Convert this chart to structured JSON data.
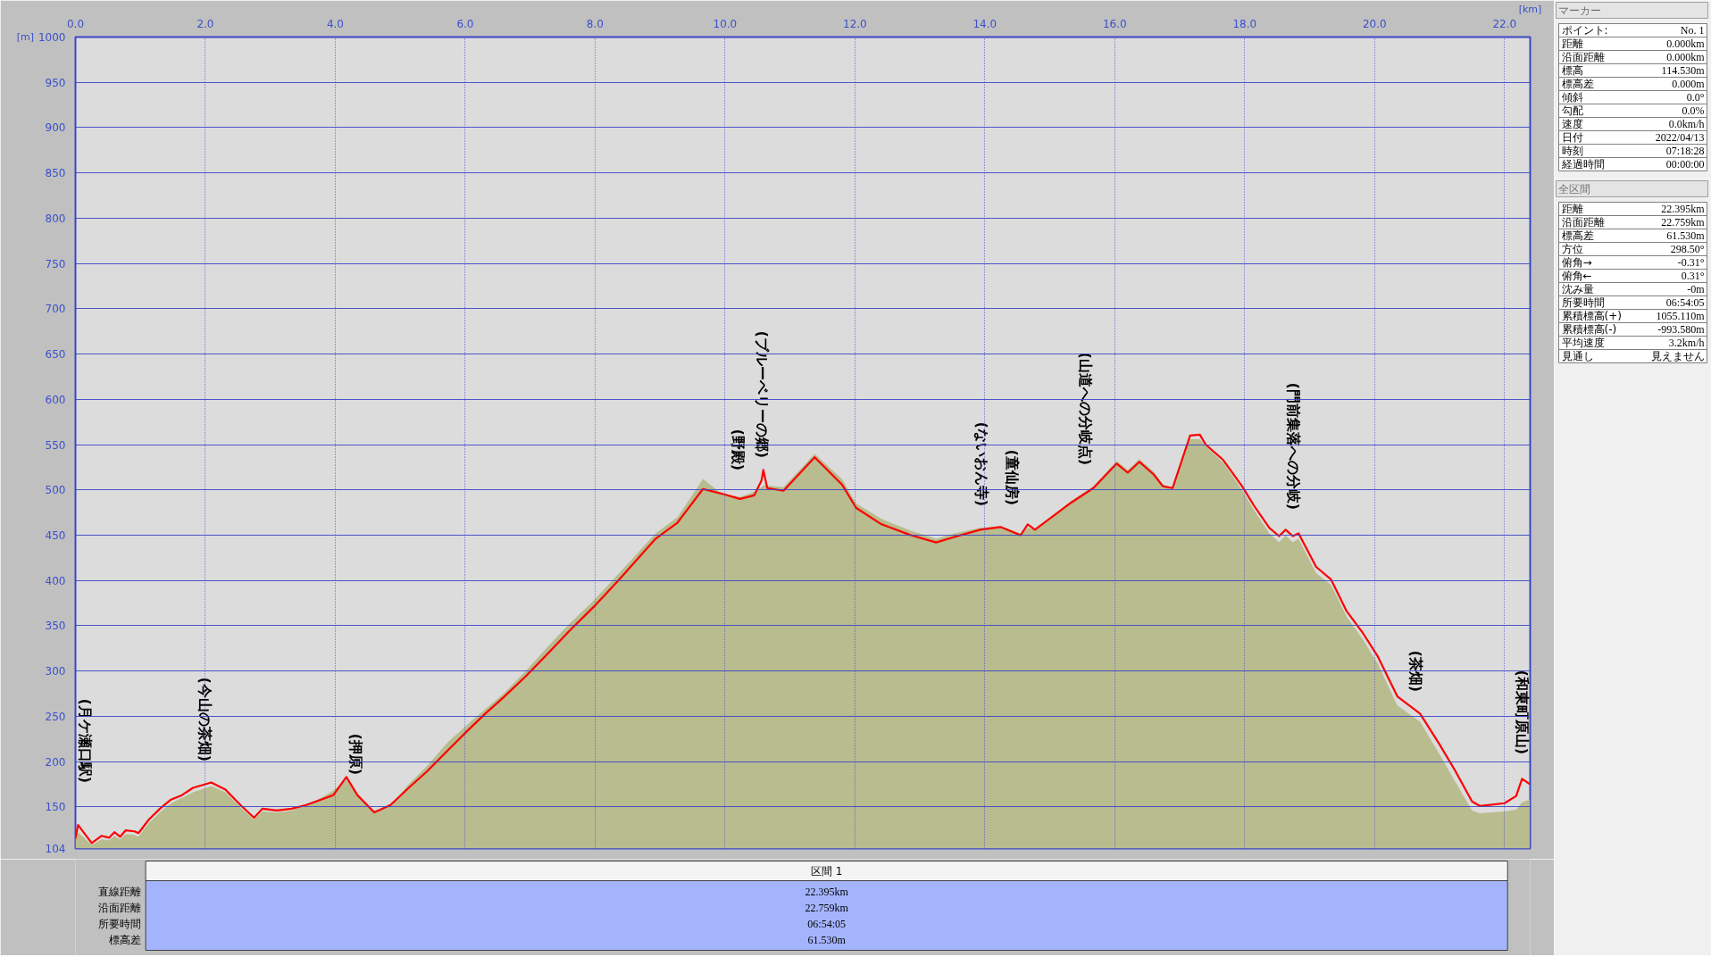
{
  "chart_data": [
    {
      "type": "area",
      "xlabel": "[km]",
      "ylabel": "[m]",
      "xlim": [
        0,
        22.395
      ],
      "ylim": [
        104,
        1000
      ],
      "xticks": [
        {
          "value": 0,
          "label": "0.0"
        },
        {
          "value": 2,
          "label": "2.0"
        },
        {
          "value": 4,
          "label": "4.0"
        },
        {
          "value": 6,
          "label": "6.0"
        },
        {
          "value": 8,
          "label": "8.0"
        },
        {
          "value": 10,
          "label": "10.0"
        },
        {
          "value": 12,
          "label": "12.0"
        },
        {
          "value": 14,
          "label": "14.0"
        },
        {
          "value": 16,
          "label": "16.0"
        },
        {
          "value": 18,
          "label": "18.0"
        },
        {
          "value": 20,
          "label": "20.0"
        },
        {
          "value": 22,
          "label": "22.0"
        }
      ],
      "yticks": [
        104,
        150,
        200,
        250,
        300,
        350,
        400,
        450,
        500,
        550,
        600,
        650,
        700,
        750,
        800,
        850,
        900,
        950,
        1000
      ],
      "grid": true,
      "x": [
        0,
        0.04,
        0.25,
        0.4,
        0.52,
        0.6,
        0.69,
        0.77,
        0.91,
        0.97,
        1.13,
        1.3,
        1.47,
        1.64,
        1.81,
        2.09,
        2.31,
        2.54,
        2.75,
        2.88,
        3.1,
        3.33,
        3.55,
        3.78,
        3.97,
        4.17,
        4.34,
        4.6,
        4.85,
        5.13,
        5.41,
        5.74,
        6.02,
        6.31,
        6.59,
        6.93,
        7.31,
        7.6,
        7.98,
        8.37,
        8.93,
        9.27,
        9.66,
        9.94,
        10.23,
        10.45,
        10.56,
        10.59,
        10.65,
        10.9,
        11.38,
        11.8,
        12.02,
        12.41,
        12.86,
        13.25,
        13.53,
        13.93,
        14.24,
        14.55,
        14.66,
        14.77,
        15.33,
        15.67,
        16.03,
        16.2,
        16.38,
        16.6,
        16.74,
        16.89,
        17.16,
        17.31,
        17.4,
        17.67,
        17.96,
        18.14,
        18.38,
        18.53,
        18.63,
        18.74,
        18.83,
        19.1,
        19.33,
        19.57,
        19.81,
        20.05,
        20.35,
        20.7,
        21.0,
        21.24,
        21.5,
        21.62,
        22.0,
        22.18,
        22.27,
        22.39
      ],
      "series": [
        {
          "type": "area",
          "color": "#b8bc8e",
          "values": [
            118,
            122,
            108,
            114,
            113,
            118,
            114,
            120,
            119,
            117,
            132,
            144,
            154,
            160,
            166,
            173,
            166,
            149,
            136,
            145,
            144,
            146,
            152,
            160,
            168,
            180,
            162,
            146,
            151,
            175,
            195,
            222,
            240,
            258,
            275,
            300,
            330,
            352,
            378,
            408,
            452,
            470,
            512,
            496,
            492,
            498,
            503,
            505,
            505,
            503,
            540,
            512,
            485,
            468,
            455,
            446,
            452,
            458,
            460,
            452,
            458,
            456,
            488,
            504,
            532,
            522,
            534,
            520,
            506,
            502,
            556,
            556,
            548,
            530,
            500,
            478,
            452,
            442,
            450,
            442,
            446,
            408,
            395,
            360,
            336,
            308,
            262,
            244,
            208,
            178,
            146,
            143,
            145,
            147,
            155,
            158
          ]
        },
        {
          "type": "line",
          "color": "#ff0000",
          "values": [
            115,
            130,
            110,
            118,
            116,
            122,
            117,
            124,
            123,
            121,
            136,
            148,
            158,
            163,
            171,
            177,
            169,
            152,
            138,
            148,
            146,
            148,
            152,
            158,
            163,
            183,
            163,
            144,
            152,
            171,
            189,
            213,
            233,
            253,
            271,
            294,
            322,
            344,
            371,
            401,
            446,
            464,
            501,
            496,
            490,
            494,
            510,
            522,
            502,
            499,
            536,
            506,
            480,
            462,
            450,
            442,
            448,
            456,
            459,
            450,
            462,
            456,
            486,
            502,
            529,
            519,
            531,
            517,
            504,
            502,
            560,
            561,
            550,
            533,
            504,
            483,
            458,
            449,
            456,
            449,
            452,
            415,
            401,
            366,
            343,
            316,
            272,
            253,
            219,
            190,
            156,
            151,
            154,
            162,
            181,
            175
          ]
        }
      ],
      "annotations": [
        "(月ケ瀬口駅)",
        "(今山の茶畑)",
        "(押原)",
        "(野殿)",
        "(ブルーベリーの郷)",
        "(ないおん寺)",
        "(童仙房)",
        "(山道への分岐点)",
        "(門前集落への分岐)",
        "(茶畑)",
        "(和東町原山)"
      ]
    },
    {
      "type": "other",
      "title": "マーカー",
      "annotations": [
        "ポイント:",
        "No. 1",
        "距離",
        "0.000km",
        "沿面距離",
        "0.000km",
        "標高",
        "114.530m",
        "標高差",
        "0.000m",
        "傾斜",
        "0.0°",
        "勾配",
        "0.0%",
        "速度",
        "0.0km/h",
        "日付",
        "2022/04/13",
        "時刻",
        "07:18:28",
        "経過時間",
        "00:00:00"
      ]
    },
    {
      "type": "other",
      "title": "全区間",
      "annotations": [
        "距離",
        "22.395km",
        "沿面距離",
        "22.759km",
        "標高差",
        "61.530m",
        "方位",
        "298.50°",
        "俯角→",
        "-0.31°",
        "俯角←",
        "0.31°",
        "沈み量",
        "-0m",
        "所要時間",
        "06:54:05",
        "累積標高(+)",
        "1055.110m",
        "累積標高(-)",
        "-993.580m",
        "平均速度",
        "3.2km/h",
        "見通し",
        "見えません"
      ]
    },
    {
      "type": "other",
      "title": "区間 1",
      "annotations": [
        "直線距離",
        "22.395km",
        "沿面距離",
        "22.759km",
        "所要時間",
        "06:54:05",
        "標高差",
        "61.530m"
      ]
    }
  ]
}
